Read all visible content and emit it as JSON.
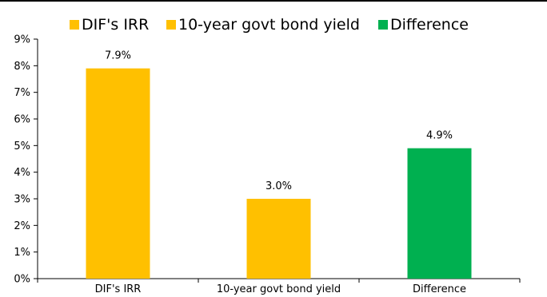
{
  "chart_data": {
    "type": "bar",
    "categories": [
      "DIF's IRR",
      "10-year govt bond yield",
      "Difference"
    ],
    "values": [
      7.9,
      3.0,
      4.9
    ],
    "data_labels": [
      "7.9%",
      "3.0%",
      "4.9%"
    ],
    "colors": [
      "#ffc000",
      "#ffc000",
      "#00b050"
    ],
    "legend": [
      {
        "label": "DIF's IRR",
        "color": "#ffc000"
      },
      {
        "label": "10-year govt bond yield",
        "color": "#ffc000"
      },
      {
        "label": "Difference",
        "color": "#00b050"
      }
    ],
    "legend_position": "top",
    "ylim": [
      0,
      9
    ],
    "yticks": [
      "0%",
      "1%",
      "2%",
      "3%",
      "4%",
      "5%",
      "6%",
      "7%",
      "8%",
      "9%"
    ],
    "grid": false,
    "title": "",
    "xlabel": "",
    "ylabel": ""
  }
}
